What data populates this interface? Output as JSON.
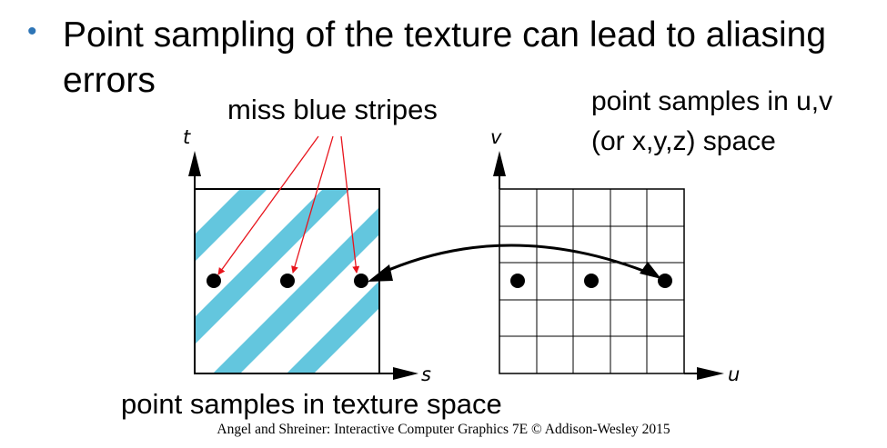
{
  "bullet": {
    "text": "Point sampling of the texture can lead to aliasing errors"
  },
  "annotations": {
    "miss_label": "miss blue stripes",
    "uv_label_line1": "point samples in u,v",
    "uv_label_line2": "(or x,y,z) space",
    "texture_label": "point samples in texture space"
  },
  "left_panel": {
    "vertical_axis": "t",
    "horizontal_axis": "s",
    "stripe_color": "#63c6de"
  },
  "right_panel": {
    "vertical_axis": "v",
    "horizontal_axis": "u",
    "grid_size": 5
  },
  "footer": "Angel and Shreiner: Interactive Computer Graphics 7E © Addison-Wesley 2015",
  "colors": {
    "bullet": "#2e75b6",
    "arrows": "#e8141c",
    "stripes": "#63c6de"
  }
}
